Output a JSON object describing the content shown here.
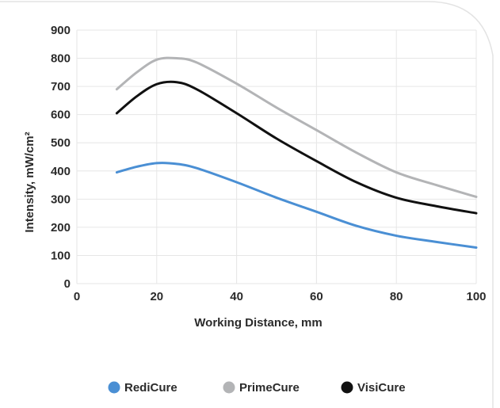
{
  "chart_data": {
    "type": "line",
    "xlabel": "Working Distance, mm",
    "ylabel": "Intensity, mW/cm²",
    "xlim": [
      0,
      100
    ],
    "ylim": [
      0,
      900
    ],
    "x_ticks": [
      "0",
      "20",
      "40",
      "60",
      "80",
      "100"
    ],
    "y_ticks": [
      "0",
      "100",
      "200",
      "300",
      "400",
      "500",
      "600",
      "700",
      "800",
      "900"
    ],
    "grid": true,
    "legend_position": "bottom",
    "series": [
      {
        "name": "RediCure",
        "color": "#4a8fd4",
        "x": [
          10,
          15,
          20,
          25,
          30,
          40,
          50,
          60,
          70,
          80,
          90,
          100
        ],
        "y": [
          395,
          415,
          428,
          425,
          410,
          360,
          305,
          255,
          205,
          170,
          148,
          128
        ]
      },
      {
        "name": "PrimeCure",
        "color": "#b3b4b6",
        "x": [
          10,
          15,
          20,
          25,
          30,
          40,
          50,
          60,
          70,
          80,
          90,
          100
        ],
        "y": [
          690,
          750,
          795,
          800,
          785,
          710,
          625,
          545,
          465,
          395,
          350,
          308
        ]
      },
      {
        "name": "VisiCure",
        "color": "#111111",
        "x": [
          10,
          15,
          20,
          25,
          30,
          40,
          50,
          60,
          70,
          80,
          90,
          100
        ],
        "y": [
          605,
          665,
          708,
          715,
          690,
          605,
          515,
          435,
          360,
          305,
          275,
          250
        ]
      }
    ]
  }
}
